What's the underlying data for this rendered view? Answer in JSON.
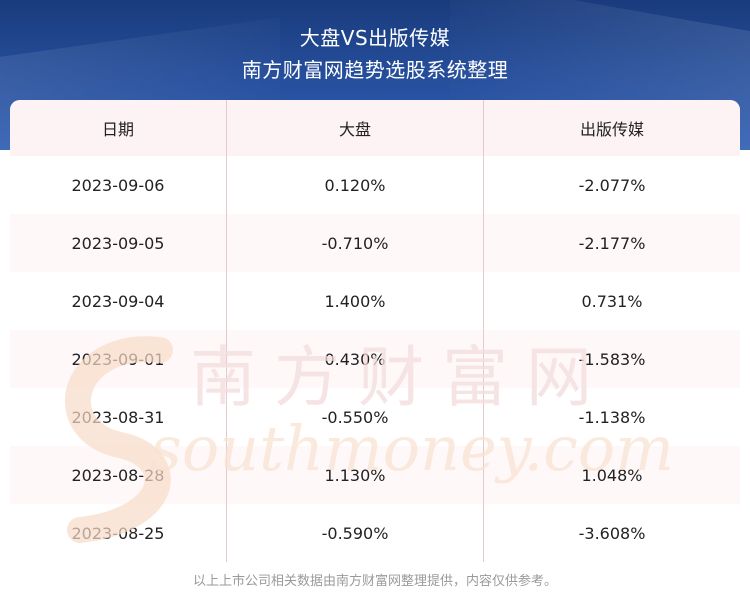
{
  "header": {
    "title_line1": "大盘VS出版传媒",
    "title_line2": "南方财富网趋势选股系统整理"
  },
  "table": {
    "columns": [
      "日期",
      "大盘",
      "出版传媒"
    ],
    "rows": [
      [
        "2023-09-06",
        "0.120%",
        "-2.077%"
      ],
      [
        "2023-09-05",
        "-0.710%",
        "-2.177%"
      ],
      [
        "2023-09-04",
        "1.400%",
        "0.731%"
      ],
      [
        "2023-09-01",
        "0.430%",
        "-1.583%"
      ],
      [
        "2023-08-31",
        "-0.550%",
        "-1.138%"
      ],
      [
        "2023-08-28",
        "1.130%",
        "1.048%"
      ],
      [
        "2023-08-25",
        "-0.590%",
        "-3.608%"
      ]
    ]
  },
  "watermark": {
    "cn": "南方财富网",
    "en": "southmoney.com"
  },
  "footer": {
    "note": "以上上市公司相关数据由南方财富网整理提供，内容仅供参考。"
  },
  "colors": {
    "header_blue": "#244c98",
    "grid_line": "#e8c8cf",
    "watermark": "#f6d9c4"
  }
}
